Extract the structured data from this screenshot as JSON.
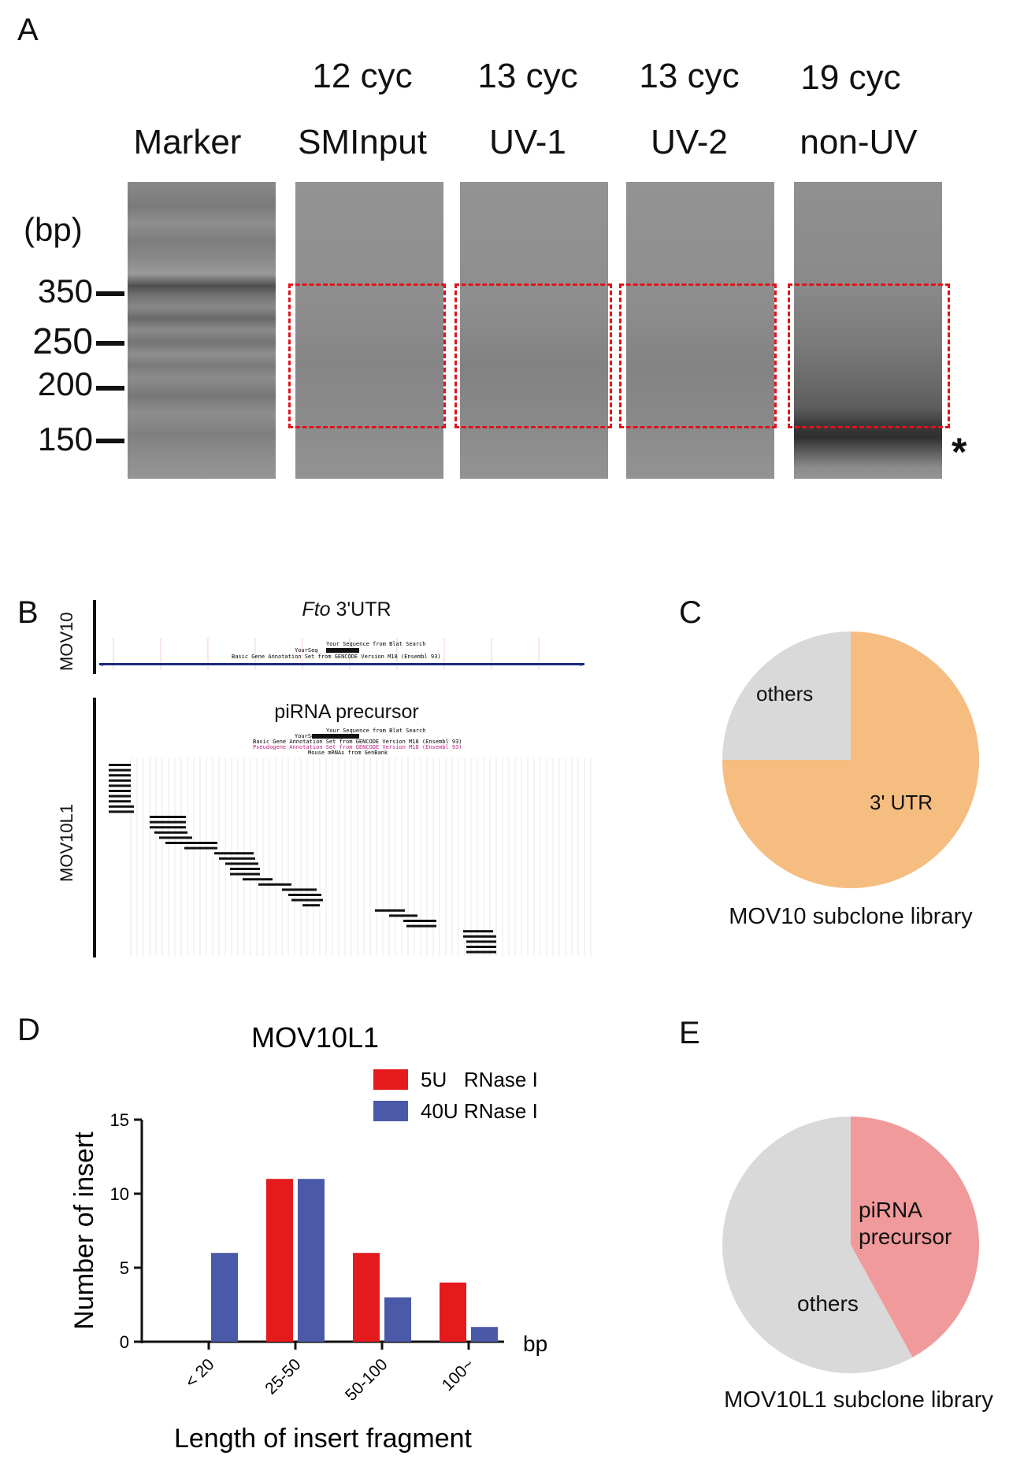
{
  "panelA": {
    "label": "A",
    "marker_label": "Marker",
    "unit_label": "(bp)",
    "size_ticks": [
      "350",
      "250",
      "200",
      "150"
    ],
    "lanes": [
      {
        "top": "12 cyc",
        "bottom": "SMInput"
      },
      {
        "top": "13 cyc",
        "bottom": "UV-1"
      },
      {
        "top": "13 cyc",
        "bottom": "UV-2"
      },
      {
        "top": "19 cyc",
        "bottom": "non-UV"
      }
    ],
    "asterisk": "*"
  },
  "panelB": {
    "label": "B",
    "mov10_label": "MOV10",
    "mov10_title_italic": "Fto",
    "mov10_title_rest": " 3'UTR",
    "mov10l1_label": "MOV10L1",
    "mov10l1_title": "piRNA precursor",
    "browser_lines_top": [
      "Your Sequence from Blat Search",
      "YourSeq",
      "Basic Gene Annotation Set from GENCODE Version M18 (Ensembl 93)"
    ],
    "browser_lines_bottom": [
      "Your Sequence from Blat Search",
      "YourSeq",
      "Basic Gene Annotation Set from GENCODE Version M18 (Ensembl 93)",
      "Pseudogene Annotation Set from GENCODE Version M18 (Ensembl 93)",
      "Mouse mRNAs from GenBank"
    ]
  },
  "panelC": {
    "label": "C",
    "caption": "MOV10 subclone library",
    "slices": [
      {
        "name": "3' UTR",
        "value": 75,
        "color": "#f5bd80"
      },
      {
        "name": "others",
        "value": 25,
        "color": "#d9d9d9"
      }
    ]
  },
  "panelD": {
    "label": "D",
    "chart_data": {
      "type": "bar",
      "title": "MOV10L1",
      "xlabel": "Length of  insert fragment",
      "ylabel": "Number of insert",
      "x_unit": "bp",
      "categories": [
        "< 20",
        "25-50",
        "50-100",
        "100~"
      ],
      "series": [
        {
          "name": "5U   RNase I",
          "color": "#e41a1c",
          "values": [
            0,
            11,
            6,
            4
          ]
        },
        {
          "name": "40U RNase I",
          "color": "#4a5aa8",
          "values": [
            6,
            11,
            3,
            1
          ]
        }
      ],
      "ylim": [
        0,
        15
      ],
      "yticks": [
        "0",
        "5",
        "10",
        "15"
      ]
    }
  },
  "panelE": {
    "label": "E",
    "caption": "MOV10L1 subclone library",
    "slices": [
      {
        "name": "piRNA precursor",
        "line1": "piRNA",
        "line2": "precursor",
        "value": 42,
        "color": "#f09a9c"
      },
      {
        "name": "others",
        "value": 58,
        "color": "#d9d9d9"
      }
    ]
  }
}
